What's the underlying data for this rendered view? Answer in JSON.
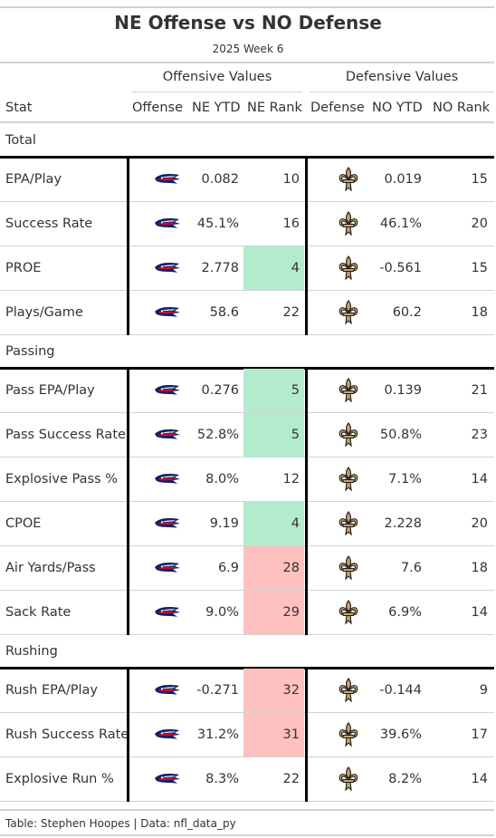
{
  "title": "NE Offense vs NO Defense",
  "subtitle": "2025 Week 6",
  "spanners": {
    "offense": "Offensive Values",
    "defense": "Defensive Values"
  },
  "columns": {
    "stat": "Stat",
    "offense": "Offense",
    "ne_ytd": "NE YTD",
    "ne_rank": "NE Rank",
    "defense": "Defense",
    "no_ytd": "NO YTD",
    "no_rank": "NO Rank"
  },
  "colors": {
    "good": "#b3ebcf",
    "bad": "#ffc0c0",
    "patriots_blue": "#0b2265",
    "patriots_red": "#c60c30",
    "saints_gold": "#c8a56b",
    "saints_dark": "#1b1b1b"
  },
  "groups": [
    {
      "name": "Total",
      "rows": [
        {
          "stat": "EPA/Play",
          "ne_ytd": "0.082",
          "ne_rank": "10",
          "no_ytd": "0.019",
          "no_rank": "15",
          "highlight": "none"
        },
        {
          "stat": "Success Rate",
          "ne_ytd": "45.1%",
          "ne_rank": "16",
          "no_ytd": "46.1%",
          "no_rank": "20",
          "highlight": "none"
        },
        {
          "stat": "PROE",
          "ne_ytd": "2.778",
          "ne_rank": "4",
          "no_ytd": "-0.561",
          "no_rank": "15",
          "highlight": "good"
        },
        {
          "stat": "Plays/Game",
          "ne_ytd": "58.6",
          "ne_rank": "22",
          "no_ytd": "60.2",
          "no_rank": "18",
          "highlight": "none"
        }
      ]
    },
    {
      "name": "Passing",
      "rows": [
        {
          "stat": "Pass EPA/Play",
          "ne_ytd": "0.276",
          "ne_rank": "5",
          "no_ytd": "0.139",
          "no_rank": "21",
          "highlight": "good"
        },
        {
          "stat": "Pass Success Rate",
          "ne_ytd": "52.8%",
          "ne_rank": "5",
          "no_ytd": "50.8%",
          "no_rank": "23",
          "highlight": "good"
        },
        {
          "stat": "Explosive Pass %",
          "ne_ytd": "8.0%",
          "ne_rank": "12",
          "no_ytd": "7.1%",
          "no_rank": "14",
          "highlight": "none"
        },
        {
          "stat": "CPOE",
          "ne_ytd": "9.19",
          "ne_rank": "4",
          "no_ytd": "2.228",
          "no_rank": "20",
          "highlight": "good"
        },
        {
          "stat": "Air Yards/Pass",
          "ne_ytd": "6.9",
          "ne_rank": "28",
          "no_ytd": "7.6",
          "no_rank": "18",
          "highlight": "bad"
        },
        {
          "stat": "Sack Rate",
          "ne_ytd": "9.0%",
          "ne_rank": "29",
          "no_ytd": "6.9%",
          "no_rank": "14",
          "highlight": "bad"
        }
      ]
    },
    {
      "name": "Rushing",
      "rows": [
        {
          "stat": "Rush EPA/Play",
          "ne_ytd": "-0.271",
          "ne_rank": "32",
          "no_ytd": "-0.144",
          "no_rank": "9",
          "highlight": "bad"
        },
        {
          "stat": "Rush Success Rate",
          "ne_ytd": "31.2%",
          "ne_rank": "31",
          "no_ytd": "39.6%",
          "no_rank": "17",
          "highlight": "bad"
        },
        {
          "stat": "Explosive Run %",
          "ne_ytd": "8.3%",
          "ne_rank": "22",
          "no_ytd": "8.2%",
          "no_rank": "14",
          "highlight": "none"
        }
      ]
    }
  ],
  "logos": {
    "offense": "patriots-logo-icon",
    "defense": "saints-fleur-de-lis-icon"
  },
  "footer": "Table: Stephen Hoopes | Data: nfl_data_py"
}
